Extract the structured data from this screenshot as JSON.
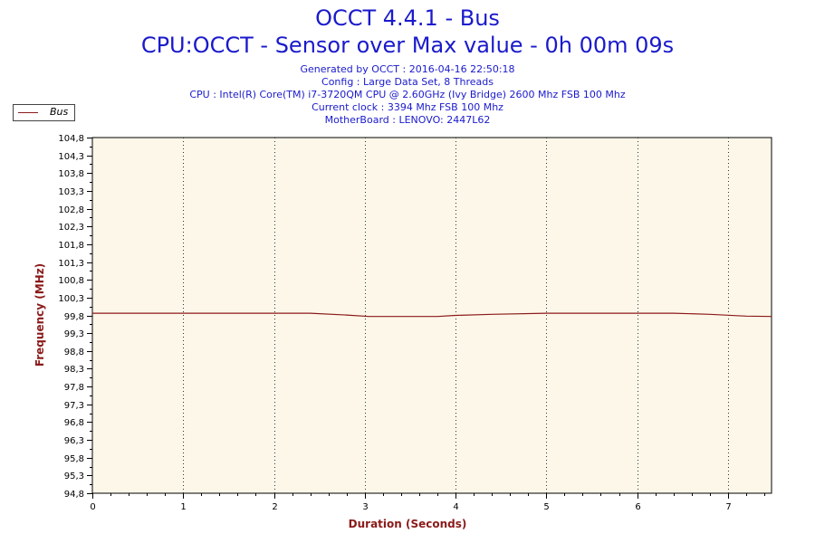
{
  "header": {
    "title": "OCCT 4.4.1 - Bus",
    "subtitle": "CPU:OCCT - Sensor over Max value - 0h 00m 09s",
    "lines": [
      "Generated by OCCT : 2016-04-16 22:50:18",
      "Config : Large Data Set, 8 Threads",
      "CPU : Intel(R) Core(TM) i7-3720QM CPU @ 2.60GHz (Ivy Bridge) 2600 Mhz FSB 100 Mhz",
      "Current clock : 3394 Mhz FSB 100 Mhz",
      "MotherBoard : LENOVO: 2447L62"
    ]
  },
  "legend": {
    "label": "Bus"
  },
  "colors": {
    "title": "#1a1acc",
    "axis_label": "#8b1a1a",
    "series": "#8b1a1a",
    "plot_bg": "#fdf7e9"
  },
  "chart_data": {
    "type": "line",
    "title": "OCCT 4.4.1 - Bus",
    "xlabel": "Duration (Seconds)",
    "ylabel": "Frequency (MHz)",
    "xlim": [
      0,
      7.48
    ],
    "ylim": [
      94.8,
      104.8
    ],
    "grid": "x-dotted",
    "legend_position": "top-left",
    "x_ticks": [
      "0",
      "1",
      "2",
      "3",
      "4",
      "5",
      "6",
      "7"
    ],
    "y_ticks": [
      "94,8",
      "95,3",
      "95,8",
      "96,3",
      "96,8",
      "97,3",
      "97,8",
      "98,3",
      "98,8",
      "99,3",
      "99,8",
      "100,3",
      "100,8",
      "101,3",
      "101,8",
      "102,3",
      "102,8",
      "103,3",
      "103,8",
      "104,3",
      "104,8"
    ],
    "series": [
      {
        "name": "Bus",
        "x": [
          0,
          0.4,
          1.0,
          1.4,
          2.0,
          2.4,
          2.8,
          3.05,
          3.8,
          4.0,
          4.4,
          5.0,
          5.4,
          6.0,
          6.4,
          6.8,
          7.2,
          7.48
        ],
        "y": [
          99.86,
          99.86,
          99.86,
          99.86,
          99.86,
          99.86,
          99.81,
          99.77,
          99.77,
          99.8,
          99.83,
          99.86,
          99.86,
          99.86,
          99.86,
          99.83,
          99.78,
          99.77
        ]
      }
    ]
  }
}
